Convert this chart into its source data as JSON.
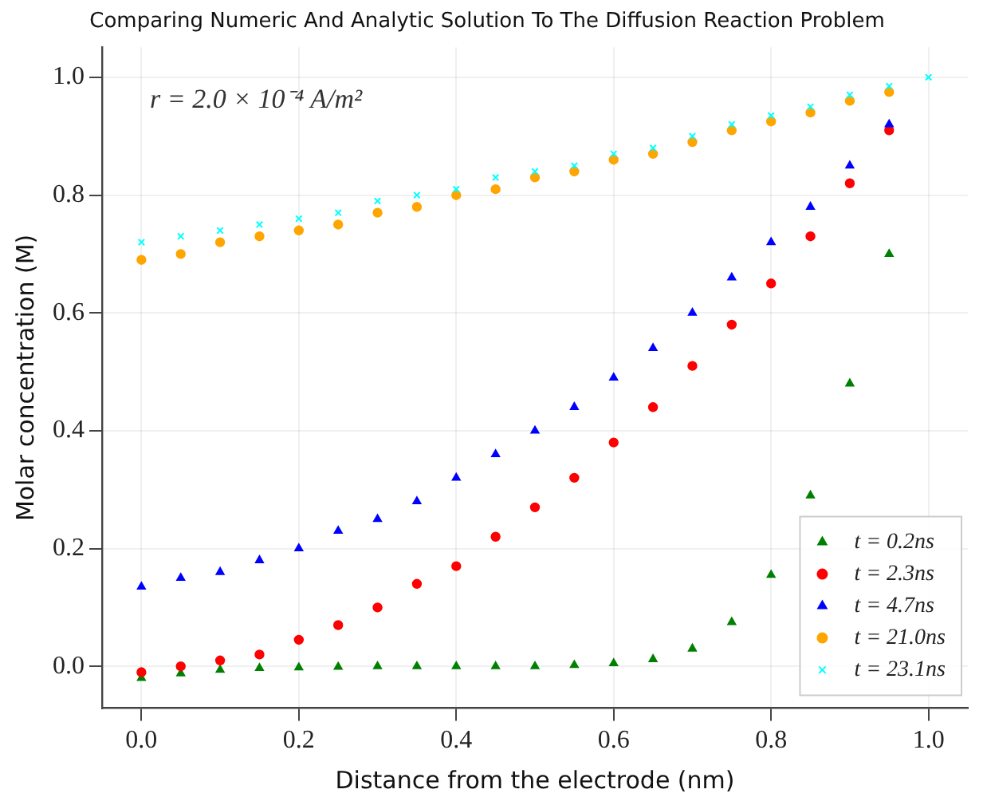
{
  "chart_data": {
    "type": "scatter",
    "title": "Comparing Numeric And Analytic Solution To The Diffusion Reaction Problem",
    "xlabel": "Distance from the electrode (nm)",
    "ylabel": "Molar concentration (M)",
    "annotations": [
      "r = 2.0 × 10⁻⁴ A/m²"
    ],
    "x": [
      0,
      0.05,
      0.1,
      0.15,
      0.2,
      0.25,
      0.3,
      0.35,
      0.4,
      0.45,
      0.5,
      0.55,
      0.6,
      0.65,
      0.7,
      0.75,
      0.8,
      0.85,
      0.9,
      0.95,
      1.0
    ],
    "series": [
      {
        "name": "t = 0.2ns",
        "color": "#008000",
        "marker": "triangle",
        "values": [
          -0.02,
          -0.012,
          -0.006,
          -0.003,
          -0.002,
          -0.001,
          0,
          0,
          0,
          0,
          0,
          0.002,
          0.005,
          0.012,
          0.03,
          0.075,
          0.155,
          0.29,
          0.48,
          0.7,
          null
        ]
      },
      {
        "name": "t = 2.3ns",
        "color": "#ff0000",
        "marker": "circle",
        "values": [
          -0.01,
          0,
          0.01,
          0.02,
          0.045,
          0.07,
          0.1,
          0.14,
          0.17,
          0.22,
          0.27,
          0.32,
          0.38,
          0.44,
          0.51,
          0.58,
          0.65,
          0.73,
          0.82,
          0.91,
          null
        ]
      },
      {
        "name": "t = 4.7ns",
        "color": "#0000ff",
        "marker": "triangle",
        "values": [
          0.135,
          0.15,
          0.16,
          0.18,
          0.2,
          0.23,
          0.25,
          0.28,
          0.32,
          0.36,
          0.4,
          0.44,
          0.49,
          0.54,
          0.6,
          0.66,
          0.72,
          0.78,
          0.85,
          0.92,
          null
        ]
      },
      {
        "name": "t = 21.0ns",
        "color": "#ffa500",
        "marker": "circle",
        "values": [
          0.69,
          0.7,
          0.72,
          0.73,
          0.74,
          0.75,
          0.77,
          0.78,
          0.8,
          0.81,
          0.83,
          0.84,
          0.86,
          0.87,
          0.89,
          0.91,
          0.925,
          0.94,
          0.96,
          0.975,
          null
        ]
      },
      {
        "name": "t = 23.1ns",
        "color": "#00ffff",
        "marker": "cross",
        "values": [
          0.72,
          0.73,
          0.74,
          0.75,
          0.76,
          0.77,
          0.79,
          0.8,
          0.81,
          0.83,
          0.84,
          0.85,
          0.87,
          0.88,
          0.9,
          0.92,
          0.935,
          0.95,
          0.97,
          0.985,
          1.0
        ]
      }
    ],
    "xlim": [
      -0.05,
      1.05
    ],
    "ylim": [
      -0.071,
      1.051
    ],
    "xticks": [
      {
        "value": 0,
        "label": "0.0"
      },
      {
        "value": 0.2,
        "label": "0.2"
      },
      {
        "value": 0.4,
        "label": "0.4"
      },
      {
        "value": 0.6,
        "label": "0.6"
      },
      {
        "value": 0.8,
        "label": "0.8"
      },
      {
        "value": 1,
        "label": "1.0"
      }
    ],
    "yticks": [
      {
        "value": 0,
        "label": "0.0"
      },
      {
        "value": 0.2,
        "label": "0.2"
      },
      {
        "value": 0.4,
        "label": "0.4"
      },
      {
        "value": 0.6,
        "label": "0.6"
      },
      {
        "value": 0.8,
        "label": "0.8"
      },
      {
        "value": 1,
        "label": "1.0"
      }
    ],
    "grid": true,
    "legend": "bottom right"
  }
}
